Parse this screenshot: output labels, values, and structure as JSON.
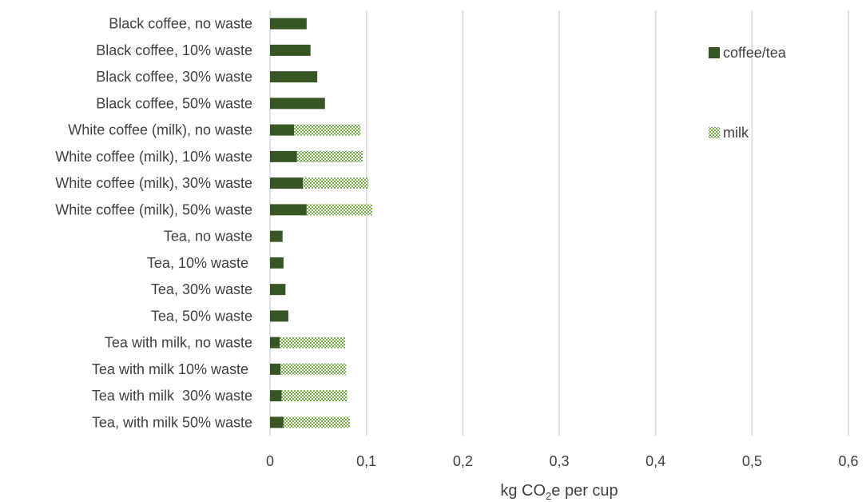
{
  "chart_data": {
    "type": "bar",
    "orientation": "horizontal",
    "stacked": true,
    "categories": [
      "Black coffee, no waste",
      "Black coffee, 10% waste",
      "Black coffee, 30% waste",
      "Black coffee, 50% waste",
      "White coffee (milk), no waste",
      "White coffee (milk), 10% waste",
      "White coffee (milk), 30% waste",
      "White coffee (milk), 50% waste",
      "Tea, no waste",
      "Tea, 10% waste ",
      "Tea, 30% waste",
      "Tea, 50% waste",
      "Tea with milk, no waste",
      "Tea with milk 10% waste ",
      "Tea with milk  30% waste",
      "Tea, with milk 50% waste"
    ],
    "series": [
      {
        "name": "coffee/tea",
        "color": "#375623",
        "pattern": "solid",
        "values": [
          0.038,
          0.042,
          0.049,
          0.057,
          0.025,
          0.028,
          0.034,
          0.038,
          0.013,
          0.014,
          0.016,
          0.019,
          0.01,
          0.011,
          0.012,
          0.014
        ]
      },
      {
        "name": "milk",
        "color": "#70ad47",
        "pattern": "crosshatch",
        "values": [
          0,
          0,
          0,
          0,
          0.069,
          0.068,
          0.068,
          0.068,
          0,
          0,
          0,
          0,
          0.068,
          0.068,
          0.068,
          0.069
        ]
      }
    ],
    "xlim": [
      0,
      0.6
    ],
    "xticks": [
      "0",
      "0,1",
      "0,2",
      "0,3",
      "0,4",
      "0,5",
      "0,6"
    ],
    "xtick_values": [
      0,
      0.1,
      0.2,
      0.3,
      0.4,
      0.5,
      0.6
    ],
    "xlabel_parts": [
      "kg CO",
      "2",
      "e per cup"
    ],
    "grid": "vertical",
    "legend_position": "right"
  }
}
